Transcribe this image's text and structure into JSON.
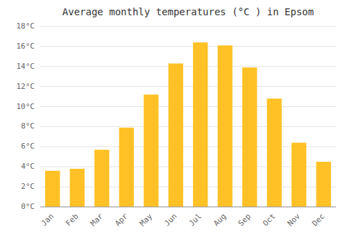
{
  "chart_data": {
    "type": "bar",
    "title": "Average monthly temperatures (°C ) in Epsom",
    "categories": [
      "Jan",
      "Feb",
      "Mar",
      "Apr",
      "May",
      "Jun",
      "Jul",
      "Aug",
      "Sep",
      "Oct",
      "Nov",
      "Dec"
    ],
    "values": [
      3.6,
      3.8,
      5.7,
      7.9,
      11.2,
      14.3,
      16.4,
      16.1,
      13.9,
      10.8,
      6.4,
      4.5
    ],
    "color": "#FFC125",
    "ylim": [
      0,
      18
    ],
    "yticks": [
      {
        "value": 0,
        "label": "0°C"
      },
      {
        "value": 2,
        "label": "2°C"
      },
      {
        "value": 4,
        "label": "4°C"
      },
      {
        "value": 6,
        "label": "6°C"
      },
      {
        "value": 8,
        "label": "8°C"
      },
      {
        "value": 10,
        "label": "10°C"
      },
      {
        "value": 12,
        "label": "12°C"
      },
      {
        "value": 14,
        "label": "14°C"
      },
      {
        "value": 16,
        "label": "16°C"
      },
      {
        "value": 18,
        "label": "18°C"
      }
    ],
    "grid": true
  }
}
